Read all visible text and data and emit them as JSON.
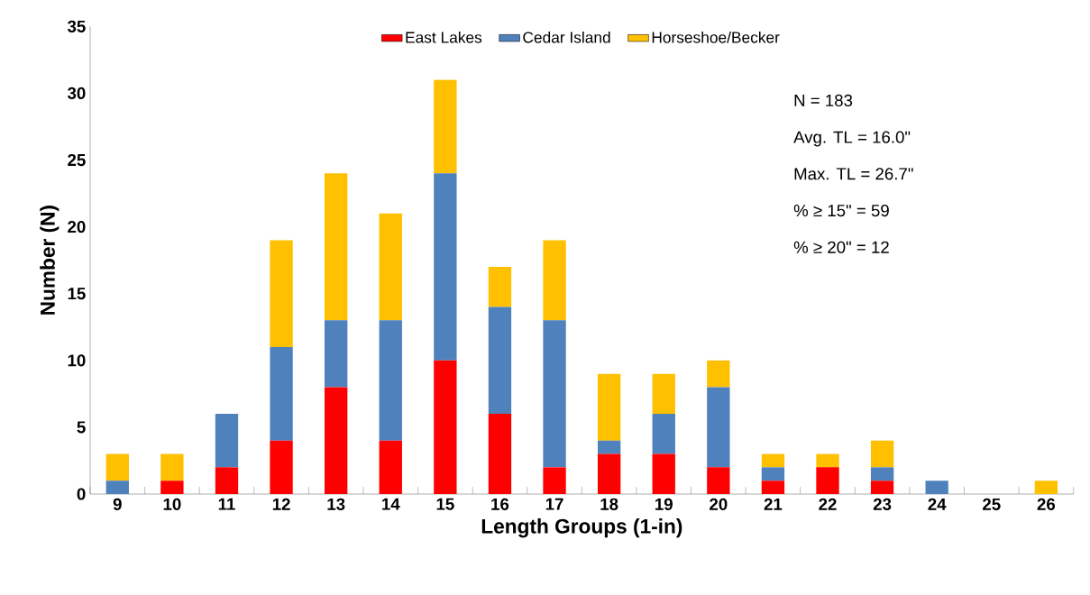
{
  "chart_data": {
    "type": "bar",
    "stacked": true,
    "xlabel": "Length Groups (1-in)",
    "ylabel": "Number (N)",
    "categories": [
      "9",
      "10",
      "11",
      "12",
      "13",
      "14",
      "15",
      "16",
      "17",
      "18",
      "19",
      "20",
      "21",
      "22",
      "23",
      "24",
      "25",
      "26"
    ],
    "series": [
      {
        "name": "East Lakes",
        "color": "#ff0000",
        "values": [
          0,
          1,
          2,
          4,
          8,
          4,
          10,
          6,
          2,
          3,
          3,
          2,
          1,
          2,
          1,
          0,
          0,
          0
        ]
      },
      {
        "name": "Cedar Island",
        "color": "#4f81bd",
        "values": [
          1,
          0,
          4,
          7,
          5,
          9,
          14,
          8,
          11,
          1,
          3,
          6,
          1,
          0,
          1,
          1,
          0,
          0
        ]
      },
      {
        "name": "Horseshoe/Becker",
        "color": "#ffc000",
        "values": [
          2,
          2,
          0,
          8,
          11,
          8,
          7,
          3,
          6,
          5,
          3,
          2,
          1,
          1,
          2,
          0,
          0,
          1
        ]
      }
    ],
    "ylim": [
      0,
      35
    ],
    "yticks": [
      0,
      5,
      10,
      15,
      20,
      25,
      30,
      35
    ],
    "grid": false,
    "legend": "top",
    "annotations": [
      "N = 183",
      "Avg. TL = 16.0\"",
      "Max. TL = 26.7\"",
      "% ≥ 15\" = 59",
      "% ≥ 20\" = 12"
    ]
  }
}
